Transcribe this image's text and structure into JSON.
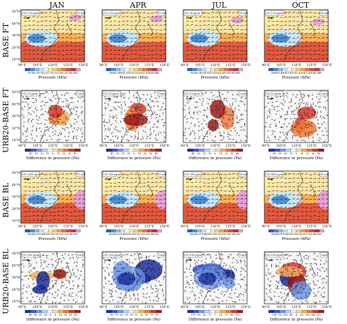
{
  "figure": {
    "columns": [
      "JAN",
      "APR",
      "JUL",
      "OCT"
    ],
    "rows": [
      {
        "label": "BASE FT",
        "colorbar_title": "Pressure (hPa)",
        "panel_tags": [
          "CO₂ 120 μg·m⁻²·s⁻¹",
          "CO₂ 120 μg·m⁻²·s⁻¹",
          "CO₂ 80 μg·m⁻²·s⁻¹",
          "CO₂ 120 μg·m⁻²·s⁻¹"
        ],
        "speed_tags": [
          "10 m/s",
          "10 m/s",
          "10 m/s",
          "10 m/s"
        ],
        "colorbar_ticks": [
          [
            "397",
            "402",
            "407",
            "412",
            "417",
            "422",
            "427",
            "432",
            "437",
            "442",
            "447"
          ],
          [
            "398",
            "403",
            "408",
            "413",
            "418",
            "423",
            "428",
            "433",
            "438",
            "443",
            "448"
          ],
          [
            "395",
            "400",
            "405",
            "410",
            "415",
            "420",
            "425",
            "430",
            "435",
            "440",
            "445"
          ],
          [
            "396",
            "401",
            "406",
            "411",
            "416",
            "421",
            "426",
            "431",
            "436",
            "441",
            "446"
          ]
        ]
      },
      {
        "label": "URB20-BASE FT",
        "colorbar_title": "Difference in pressure (Pa)",
        "panel_tags": [
          "CO₂ 15 μg·m⁻²·s⁻¹",
          "CO₂ 15 μg·m⁻²·s⁻¹",
          "CO₂ 15 μg·m⁻²·s⁻¹",
          "CO₂ 15 μg·m⁻²·s⁻¹"
        ],
        "speed_tags": [
          "1 m/s",
          "1 m/s",
          "1 m/s",
          "1 m/s"
        ],
        "colorbar_ticks": [
          [
            "-40",
            "-30",
            "-20",
            "-10",
            "0",
            "10",
            "20",
            "30",
            "40"
          ],
          [
            "-40",
            "-30",
            "-20",
            "-10",
            "0",
            "10",
            "20",
            "30",
            "40"
          ],
          [
            "-40",
            "-30",
            "-20",
            "-10",
            "0",
            "10",
            "20",
            "30",
            "40"
          ],
          [
            "-40",
            "-30",
            "-20",
            "-10",
            "0",
            "10",
            "20",
            "30",
            "40"
          ]
        ]
      },
      {
        "label": "BASE BL",
        "colorbar_title": "Pressure (hPa)",
        "panel_tags": [
          "CO₂ 2000 μg·m⁻²·s⁻¹",
          "CO₂ 500 μg·m⁻²·s⁻¹",
          "CO₂ 200 μg·m⁻²·s⁻¹",
          "CO₂ 400 μg·m⁻²·s⁻¹"
        ],
        "speed_tags": [
          "10 m/s",
          "10 m/s",
          "10 m/s",
          "10 m/s"
        ],
        "colorbar_ticks": [
          [
            "850",
            "860",
            "870",
            "880",
            "890",
            "900",
            "910",
            "920",
            "930",
            "940",
            "950"
          ],
          [
            "850",
            "860",
            "870",
            "880",
            "890",
            "900",
            "910",
            "920",
            "930",
            "940",
            "950"
          ],
          [
            "850",
            "860",
            "870",
            "880",
            "890",
            "900",
            "910",
            "920",
            "930",
            "940",
            "950"
          ],
          [
            "850",
            "860",
            "870",
            "880",
            "890",
            "900",
            "910",
            "920",
            "930",
            "940",
            "950"
          ]
        ]
      },
      {
        "label": "URB20-BASE BL",
        "colorbar_title": "Difference in pressure (Pa)",
        "panel_tags": [
          "CO₂ 150 μg·m⁻²·s⁻¹",
          "CO₂ 100 μg·m⁻²·s⁻¹",
          "CO₂ 100 μg·m⁻²·s⁻¹",
          "CO₂ 100 μg·m⁻²·s⁻¹"
        ],
        "speed_tags": [
          "1 m/s",
          "1 m/s",
          "1 m/s",
          "1 m/s"
        ],
        "colorbar_ticks": [
          [
            "-46",
            "-36",
            "-26",
            "-16",
            "-6",
            "4",
            "14",
            "24",
            "34",
            "44"
          ],
          [
            "-90",
            "-70",
            "-50",
            "-30",
            "-10",
            "10",
            "30",
            "50",
            "70",
            "90"
          ],
          [
            "-111",
            "-83",
            "-55",
            "-27",
            "1",
            "29",
            "57",
            "85",
            "113"
          ],
          [
            "-204",
            "-152",
            "-100",
            "-48",
            "4",
            "56",
            "108",
            "160",
            "212"
          ]
        ]
      }
    ],
    "lon_ticks": [
      "90°E",
      "105°E",
      "120°E",
      "135°E",
      "150°E"
    ],
    "lat_ticks": [
      "50°N",
      "40°N",
      "30°N",
      "20°N",
      "10°N"
    ]
  },
  "colors": {
    "pressure_scale": [
      "#2b5fb4",
      "#4b8fd4",
      "#8cc4ec",
      "#c8e6f6",
      "#ffffff",
      "#fff3a8",
      "#fdd66a",
      "#f9a64a",
      "#f07a3c",
      "#e0503c",
      "#c8304c",
      "#e8a0d8"
    ],
    "difference_scale": [
      "#1c2fa0",
      "#3a5ad0",
      "#6f9ae6",
      "#b4d4f4",
      "#f2f6fb",
      "#f8e090",
      "#f5b05a",
      "#ec7a3a",
      "#d43a2c",
      "#a01c1c"
    ],
    "land_line": "#333333",
    "vector": "#000000"
  }
}
